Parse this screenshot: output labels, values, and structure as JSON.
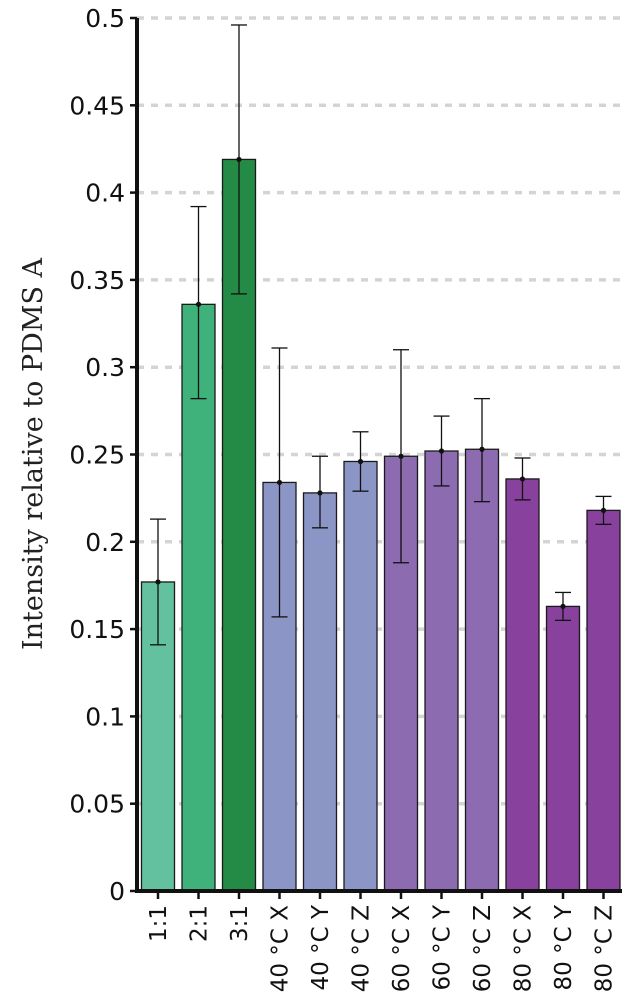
{
  "chart_data": {
    "type": "bar",
    "title": "",
    "xlabel": "",
    "ylabel": "Intensity relative to PDMS A",
    "ylim": [
      0,
      0.5
    ],
    "yticks": [
      "0",
      "0.05",
      "0.1",
      "0.15",
      "0.2",
      "0.25",
      "0.3",
      "0.35",
      "0.4",
      "0.45",
      "0.5"
    ],
    "ytick_values": [
      0,
      0.05,
      0.1,
      0.15,
      0.2,
      0.25,
      0.3,
      0.35,
      0.4,
      0.45,
      0.5
    ],
    "grid": "horizontal dashed",
    "categories": [
      "1:1",
      "2:1",
      "3:1",
      "40 °C X",
      "40 °C Y",
      "40 °C Z",
      "60 °C X",
      "60 °C Y",
      "60 °C Z",
      "80 °C X",
      "80 °C Y",
      "80 °C Z"
    ],
    "values": [
      0.177,
      0.336,
      0.419,
      0.234,
      0.228,
      0.246,
      0.249,
      0.252,
      0.253,
      0.236,
      0.163,
      0.218
    ],
    "error_low": [
      0.141,
      0.282,
      0.342,
      0.157,
      0.208,
      0.229,
      0.188,
      0.232,
      0.223,
      0.224,
      0.155,
      0.21
    ],
    "error_high": [
      0.213,
      0.392,
      0.496,
      0.311,
      0.249,
      0.263,
      0.31,
      0.272,
      0.282,
      0.248,
      0.171,
      0.226
    ],
    "colors": [
      "#63c1a0",
      "#3fb17a",
      "#238b45",
      "#8c96c6",
      "#8c96c6",
      "#8c96c6",
      "#8c6bb1",
      "#8c6bb1",
      "#8c6bb1",
      "#88419d",
      "#88419d",
      "#88419d"
    ]
  }
}
